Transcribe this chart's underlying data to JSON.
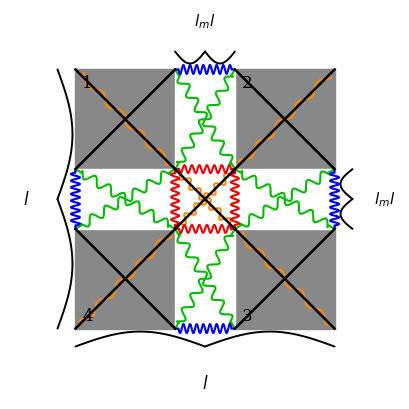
{
  "bg_color": "#ffffff",
  "gray_color": "#888888",
  "spring_colors": {
    "blue": "#0000ee",
    "green": "#00bb00",
    "red": "#ee0000",
    "orange": "#ff8800"
  },
  "s": 1.0,
  "g": 0.6,
  "figsize": [
    4.1,
    4.1
  ],
  "dpi": 100
}
